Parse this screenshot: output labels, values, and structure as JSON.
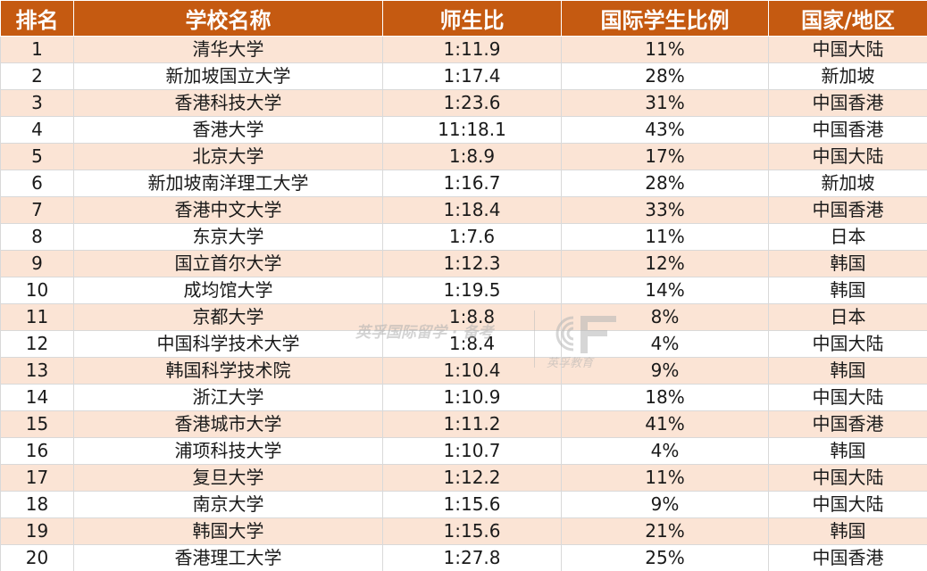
{
  "table": {
    "headers": [
      "排名",
      "学校名称",
      "师生比",
      "国际学生比例",
      "国家/地区"
    ],
    "rows": [
      [
        "1",
        "清华大学",
        "1:11.9",
        "11%",
        "中国大陆"
      ],
      [
        "2",
        "新加坡国立大学",
        "1:17.4",
        "28%",
        "新加坡"
      ],
      [
        "3",
        "香港科技大学",
        "1:23.6",
        "31%",
        "中国香港"
      ],
      [
        "4",
        "香港大学",
        "11:18.1",
        "43%",
        "中国香港"
      ],
      [
        "5",
        "北京大学",
        "1:8.9",
        "17%",
        "中国大陆"
      ],
      [
        "6",
        "新加坡南洋理工大学",
        "1:16.7",
        "28%",
        "新加坡"
      ],
      [
        "7",
        "香港中文大学",
        "1:18.4",
        "33%",
        "中国香港"
      ],
      [
        "8",
        "东京大学",
        "1:7.6",
        "11%",
        "日本"
      ],
      [
        "9",
        "国立首尔大学",
        "1:12.3",
        "12%",
        "韩国"
      ],
      [
        "10",
        "成均馆大学",
        "1:19.5",
        "14%",
        "韩国"
      ],
      [
        "11",
        "京都大学",
        "1:8.8",
        "8%",
        "日本"
      ],
      [
        "12",
        "中国科学技术大学",
        "1:8.4",
        "4%",
        "中国大陆"
      ],
      [
        "13",
        "韩国科学技术院",
        "1:10.4",
        "9%",
        "韩国"
      ],
      [
        "14",
        "浙江大学",
        "1:10.9",
        "18%",
        "中国大陆"
      ],
      [
        "15",
        "香港城市大学",
        "1:11.2",
        "41%",
        "中国香港"
      ],
      [
        "16",
        "浦项科技大学",
        "1:10.7",
        "4%",
        "韩国"
      ],
      [
        "17",
        "复旦大学",
        "1:12.2",
        "11%",
        "中国大陆"
      ],
      [
        "18",
        "南京大学",
        "1:15.6",
        "9%",
        "中国大陆"
      ],
      [
        "19",
        "韩国大学",
        "1:15.6",
        "21%",
        "韩国"
      ],
      [
        "20",
        "香港理工大学",
        "1:27.8",
        "25%",
        "中国香港"
      ]
    ]
  },
  "watermark": {
    "text": "英孚国际留学 · 备考",
    "logo_text": "英孚教育",
    "logo_icon": "ef-logo-icon"
  },
  "colors": {
    "header_bg": "#c55a11",
    "header_text": "#ffffff",
    "band_row": "#fbe4d5",
    "plain_row": "#ffffff"
  }
}
